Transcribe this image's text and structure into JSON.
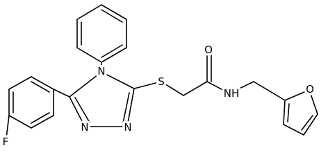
{
  "atoms": {
    "fluorine": "F",
    "triazole_n4": "N",
    "triazole_n1": "N",
    "triazole_n2": "N",
    "sulfur": "S",
    "carbonyl_oxygen": "O",
    "amide_nh": "NH",
    "furan_oxygen": "O"
  }
}
